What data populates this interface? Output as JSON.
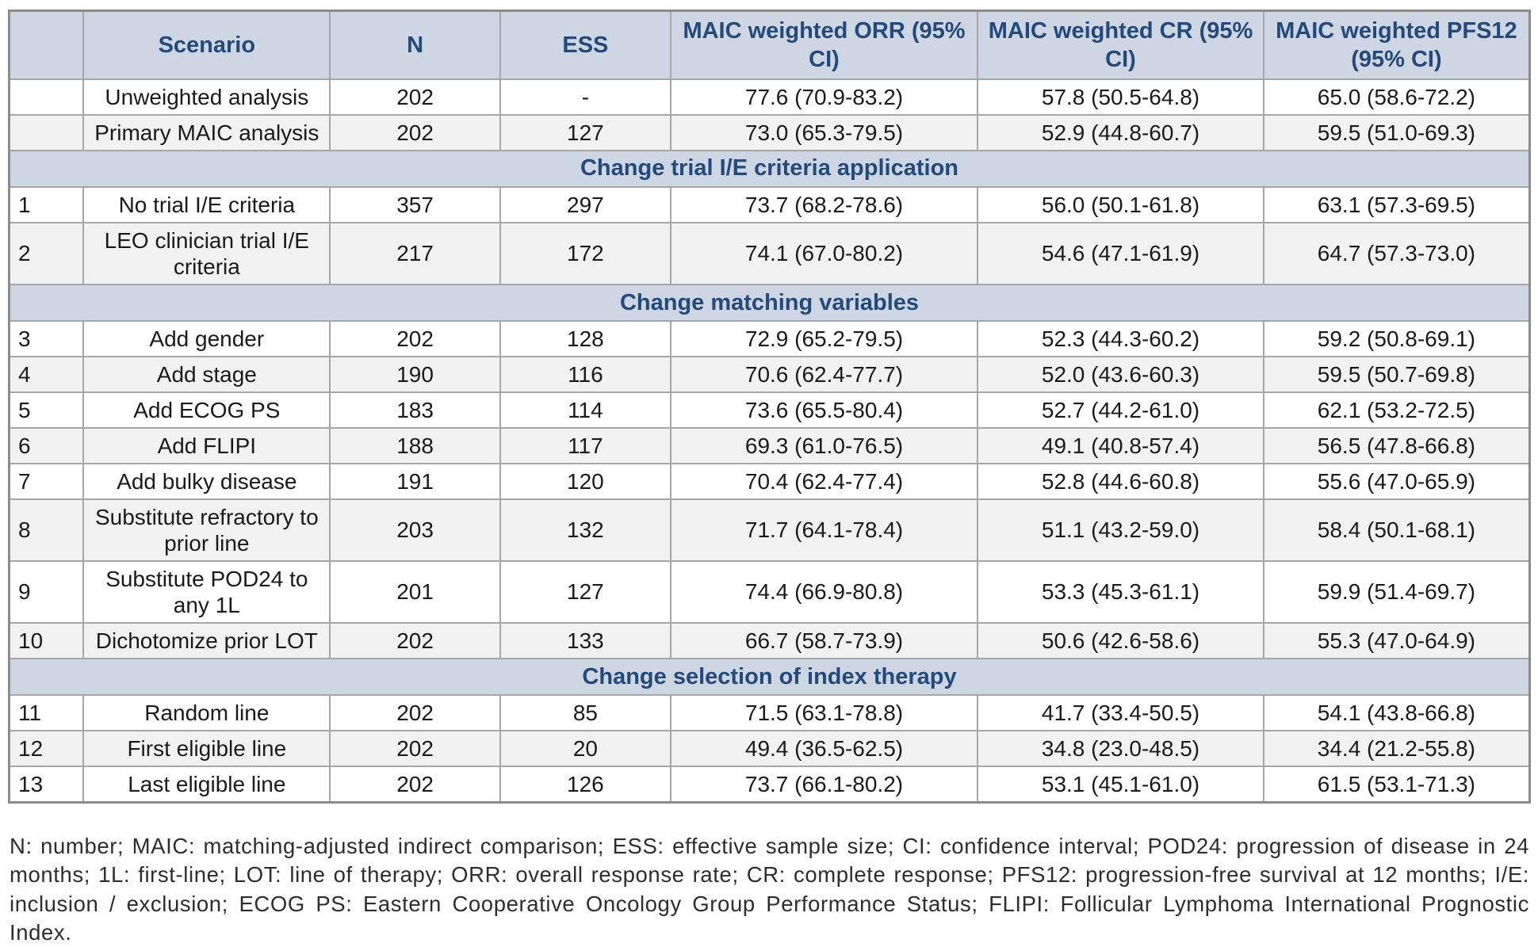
{
  "colors": {
    "header_band": "#cdd6e2",
    "header_text": "#234a7d",
    "row_stripe": "#f2f2f2",
    "border": "#a6a6a6",
    "body_text": "#1a1a1a"
  },
  "table": {
    "columns": [
      "",
      "Scenario",
      "N",
      "ESS",
      "MAIC weighted ORR (95% CI)",
      "MAIC weighted CR (95% CI)",
      "MAIC weighted PFS12 (95% CI)"
    ],
    "column_widths_pct": [
      4.9,
      16.2,
      11.2,
      11.2,
      20.2,
      18.8,
      17.5
    ],
    "rows": [
      {
        "type": "data",
        "shade": false,
        "num": "",
        "scenario": "Unweighted analysis",
        "n": "202",
        "ess": "-",
        "orr": "77.6 (70.9-83.2)",
        "cr": "57.8 (50.5-64.8)",
        "pfs12": "65.0 (58.6-72.2)"
      },
      {
        "type": "data",
        "shade": true,
        "num": "",
        "scenario": "Primary MAIC analysis",
        "n": "202",
        "ess": "127",
        "orr": "73.0 (65.3-79.5)",
        "cr": "52.9 (44.8-60.7)",
        "pfs12": "59.5 (51.0-69.3)"
      },
      {
        "type": "section",
        "label": "Change trial I/E criteria application"
      },
      {
        "type": "data",
        "shade": false,
        "num": "1",
        "scenario": "No trial I/E criteria",
        "n": "357",
        "ess": "297",
        "orr": "73.7 (68.2-78.6)",
        "cr": "56.0 (50.1-61.8)",
        "pfs12": "63.1 (57.3-69.5)"
      },
      {
        "type": "data",
        "shade": true,
        "num": "2",
        "scenario": "LEO clinician trial I/E criteria",
        "n": "217",
        "ess": "172",
        "orr": "74.1 (67.0-80.2)",
        "cr": "54.6 (47.1-61.9)",
        "pfs12": "64.7 (57.3-73.0)"
      },
      {
        "type": "section",
        "label": "Change matching variables"
      },
      {
        "type": "data",
        "shade": false,
        "num": "3",
        "scenario": "Add gender",
        "n": "202",
        "ess": "128",
        "orr": "72.9 (65.2-79.5)",
        "cr": "52.3 (44.3-60.2)",
        "pfs12": "59.2 (50.8-69.1)"
      },
      {
        "type": "data",
        "shade": true,
        "num": "4",
        "scenario": "Add stage",
        "n": "190",
        "ess": "116",
        "orr": "70.6 (62.4-77.7)",
        "cr": "52.0 (43.6-60.3)",
        "pfs12": "59.5 (50.7-69.8)"
      },
      {
        "type": "data",
        "shade": false,
        "num": "5",
        "scenario": "Add ECOG PS",
        "n": "183",
        "ess": "114",
        "orr": "73.6 (65.5-80.4)",
        "cr": "52.7 (44.2-61.0)",
        "pfs12": "62.1 (53.2-72.5)"
      },
      {
        "type": "data",
        "shade": true,
        "num": "6",
        "scenario": "Add FLIPI",
        "n": "188",
        "ess": "117",
        "orr": "69.3 (61.0-76.5)",
        "cr": "49.1 (40.8-57.4)",
        "pfs12": "56.5 (47.8-66.8)"
      },
      {
        "type": "data",
        "shade": false,
        "num": "7",
        "scenario": "Add bulky disease",
        "n": "191",
        "ess": "120",
        "orr": "70.4 (62.4-77.4)",
        "cr": "52.8 (44.6-60.8)",
        "pfs12": "55.6 (47.0-65.9)"
      },
      {
        "type": "data",
        "shade": true,
        "num": "8",
        "scenario": "Substitute refractory to prior line",
        "n": "203",
        "ess": "132",
        "orr": "71.7 (64.1-78.4)",
        "cr": "51.1 (43.2-59.0)",
        "pfs12": "58.4 (50.1-68.1)"
      },
      {
        "type": "data",
        "shade": false,
        "num": "9",
        "scenario": "Substitute POD24 to any 1L",
        "n": "201",
        "ess": "127",
        "orr": "74.4 (66.9-80.8)",
        "cr": "53.3 (45.3-61.1)",
        "pfs12": "59.9 (51.4-69.7)"
      },
      {
        "type": "data",
        "shade": true,
        "num": "10",
        "scenario": "Dichotomize prior LOT",
        "n": "202",
        "ess": "133",
        "orr": "66.7 (58.7-73.9)",
        "cr": "50.6 (42.6-58.6)",
        "pfs12": "55.3 (47.0-64.9)"
      },
      {
        "type": "section",
        "label": "Change selection of index therapy"
      },
      {
        "type": "data",
        "shade": false,
        "num": "11",
        "scenario": "Random line",
        "n": "202",
        "ess": "85",
        "orr": "71.5 (63.1-78.8)",
        "cr": "41.7 (33.4-50.5)",
        "pfs12": "54.1 (43.8-66.8)"
      },
      {
        "type": "data",
        "shade": true,
        "num": "12",
        "scenario": "First eligible line",
        "n": "202",
        "ess": "20",
        "orr": "49.4 (36.5-62.5)",
        "cr": "34.8 (23.0-48.5)",
        "pfs12": "34.4 (21.2-55.8)"
      },
      {
        "type": "data",
        "shade": false,
        "num": "13",
        "scenario": "Last eligible line",
        "n": "202",
        "ess": "126",
        "orr": "73.7 (66.1-80.2)",
        "cr": "53.1 (45.1-61.0)",
        "pfs12": "61.5 (53.1-71.3)"
      }
    ]
  },
  "footnote": "N: number; MAIC: matching-adjusted indirect comparison; ESS: effective sample size; CI: confidence interval; POD24: progression of disease in 24 months; 1L: first-line; LOT: line of therapy; ORR: overall response rate; CR: complete response; PFS12: progression-free survival at 12 months; I/E: inclusion / exclusion; ECOG PS: Eastern Cooperative Oncology Group Performance Status; FLIPI: Follicular Lymphoma International Prognostic Index."
}
